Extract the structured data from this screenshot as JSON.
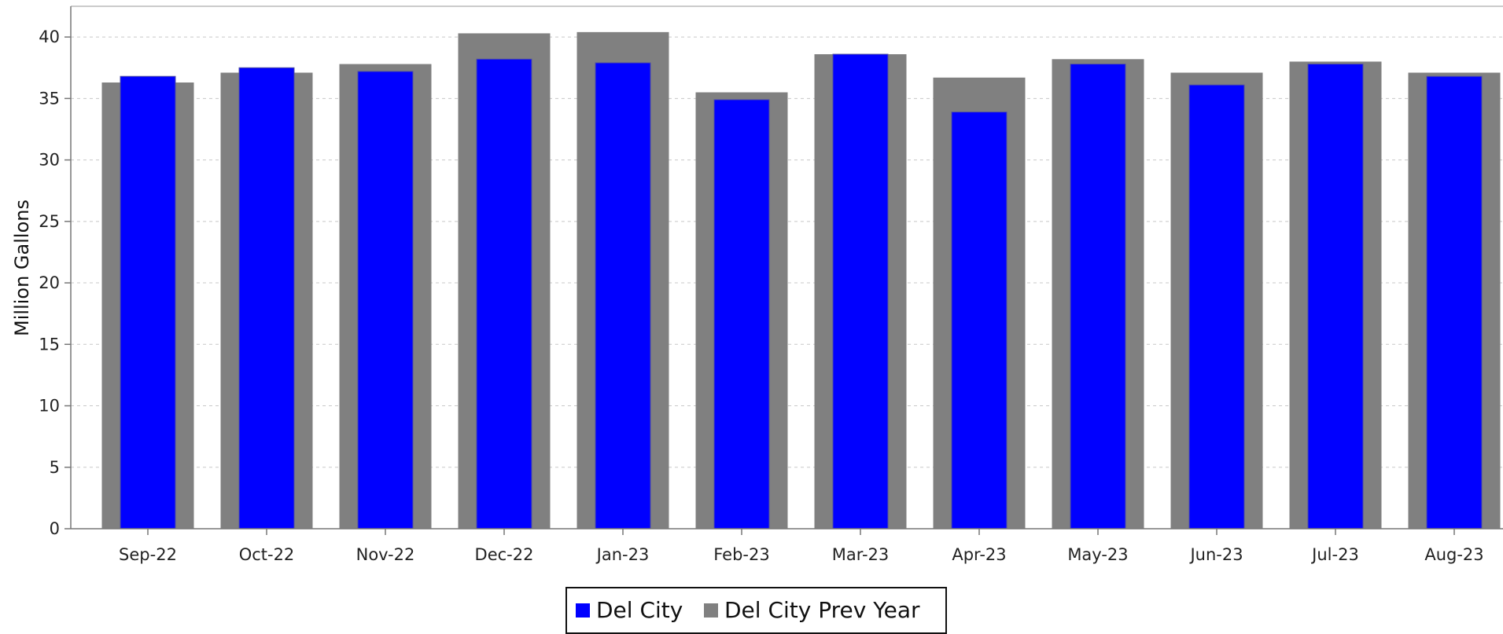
{
  "chart_data": {
    "type": "bar",
    "title": "",
    "xlabel": "",
    "ylabel": "Million Gallons",
    "ylim": [
      0,
      40
    ],
    "yticks": [
      0,
      5,
      10,
      15,
      20,
      25,
      30,
      35,
      40
    ],
    "grid": true,
    "legend_position": "bottom-center",
    "categories": [
      "Sep-22",
      "Oct-22",
      "Nov-22",
      "Dec-22",
      "Jan-23",
      "Feb-23",
      "Mar-23",
      "Apr-23",
      "May-23",
      "Jun-23",
      "Jul-23",
      "Aug-23"
    ],
    "series": [
      {
        "name": "Del City Prev Year",
        "color": "#808080",
        "values": [
          36.3,
          37.1,
          37.8,
          40.3,
          40.4,
          35.5,
          38.6,
          36.7,
          38.2,
          37.1,
          38.0,
          37.1
        ]
      },
      {
        "name": "Del City",
        "color": "#0000ff",
        "values": [
          36.8,
          37.5,
          37.2,
          38.2,
          37.9,
          34.9,
          38.6,
          33.9,
          37.8,
          36.1,
          37.8,
          36.8
        ]
      }
    ]
  }
}
